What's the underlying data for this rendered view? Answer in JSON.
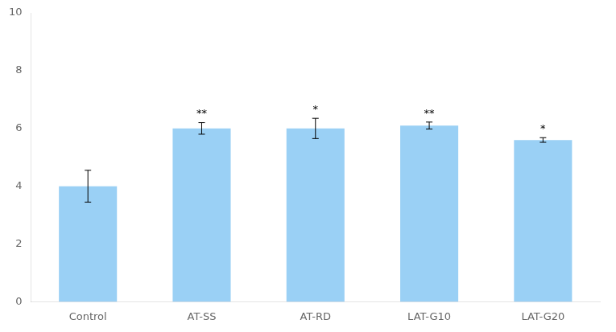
{
  "chart_data": {
    "type": "bar",
    "categories": [
      "Control",
      "AT-SS",
      "AT-RD",
      "LAT-G10",
      "LAT-G20"
    ],
    "values": [
      4.0,
      6.0,
      6.0,
      6.1,
      5.6
    ],
    "errors": [
      0.55,
      0.2,
      0.35,
      0.12,
      0.08
    ],
    "significance": [
      null,
      "**",
      "*",
      "**",
      "*"
    ],
    "ylim": [
      0,
      10
    ],
    "yticks": [
      0,
      2,
      4,
      6,
      8,
      10
    ],
    "grid": false
  }
}
